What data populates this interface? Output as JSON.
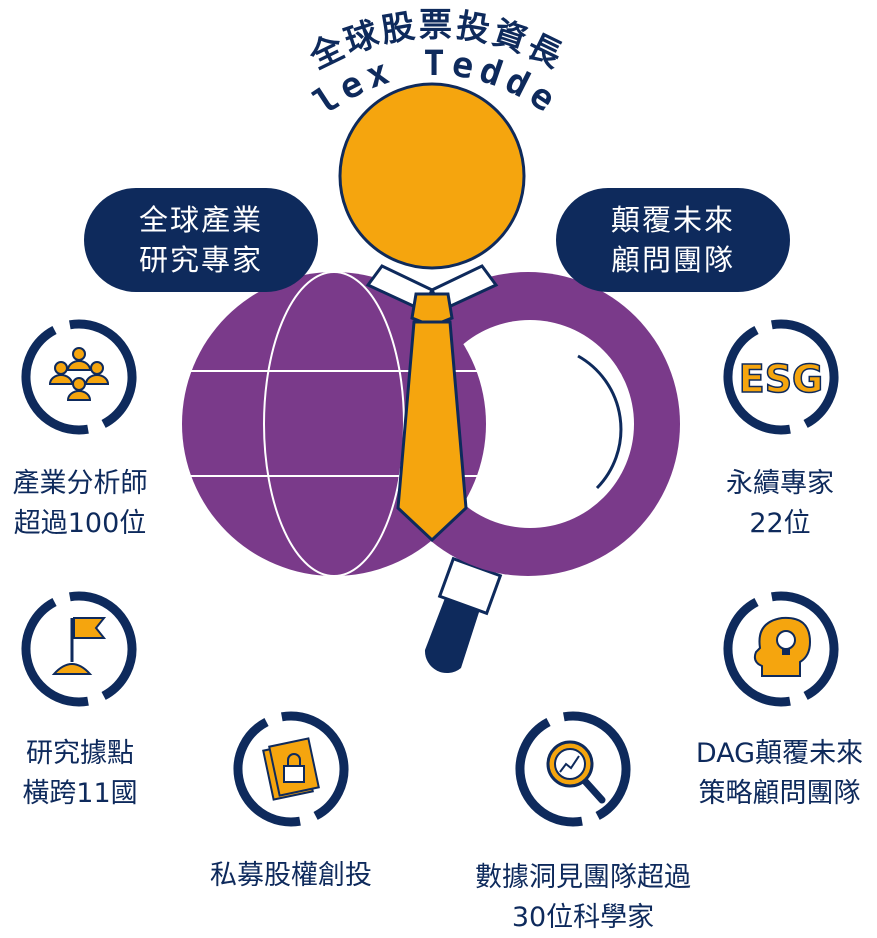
{
  "header": {
    "title": "全球股票投資長",
    "name": "Alex Tedder"
  },
  "pills": {
    "left": [
      "全球產業",
      "研究專家"
    ],
    "right": [
      "顛覆未來",
      "顧問團隊"
    ]
  },
  "features": [
    {
      "icon": "people-group-icon",
      "lines": [
        "產業分析師",
        "超過100位"
      ]
    },
    {
      "icon": "flag-icon",
      "lines": [
        "研究據點",
        "橫跨11國"
      ]
    },
    {
      "icon": "locked-folder-icon",
      "lines": [
        "私募股權創投"
      ]
    },
    {
      "icon": "magnifier-chart-icon",
      "lines": [
        "數據洞見團隊超過",
        "30位科學家"
      ]
    },
    {
      "icon": "head-lightbulb-icon",
      "lines": [
        "DAG顛覆未來",
        "策略顧問團隊"
      ]
    },
    {
      "icon": "esg-icon",
      "esg_text": "ESG",
      "lines": [
        "永續專家",
        "22位"
      ]
    }
  ],
  "colors": {
    "navy": "#0e2a5c",
    "orange": "#f5a50e",
    "purple": "#7a3a8a",
    "white": "#ffffff"
  }
}
